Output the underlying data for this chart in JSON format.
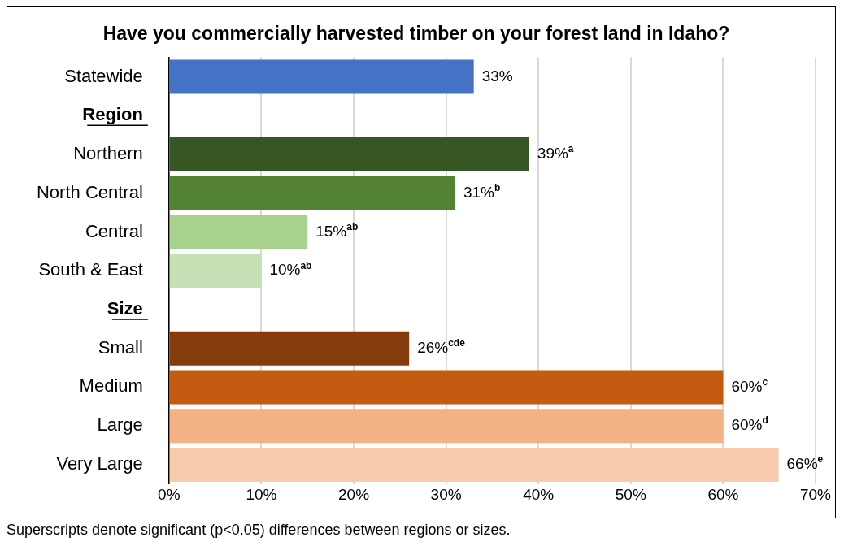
{
  "chart_data": {
    "type": "bar",
    "orientation": "horizontal",
    "title": "Have you commercially harvested timber on your forest land in Idaho?",
    "categories": [
      "Statewide",
      "Region",
      "Northern",
      "North Central",
      "Central",
      "South & East",
      "Size",
      "Small",
      "Medium",
      "Large",
      "Very Large"
    ],
    "values": [
      33,
      null,
      39,
      31,
      15,
      10,
      null,
      26,
      60,
      60,
      66
    ],
    "colors": [
      "#4472c4",
      "#ffffff",
      "#375623",
      "#548235",
      "#a9d18e",
      "#c5e0b4",
      "#ffffff",
      "#843c0c",
      "#c55a11",
      "#f4b183",
      "#f8cbad"
    ],
    "value_labels": [
      "33%",
      null,
      "39%$^{a}$",
      "31%$^{b}$",
      "15%$^{ab}$",
      "10%$^{ab}$",
      null,
      "26%$^{cde}$",
      "60%$^{c}$",
      "60%$^{d}$",
      "66%$^{e}$"
    ],
    "xlim": [
      0,
      70
    ],
    "xticks": [
      {
        "value": 0,
        "label": "0%"
      },
      {
        "value": 10,
        "label": "10%"
      },
      {
        "value": 20,
        "label": "20%"
      },
      {
        "value": 30,
        "label": "30%"
      },
      {
        "value": 40,
        "label": "40%"
      },
      {
        "value": 50,
        "label": "50%"
      },
      {
        "value": 60,
        "label": "60%"
      },
      {
        "value": 70,
        "label": "70%"
      }
    ],
    "grid": "x",
    "legend": false,
    "annotations": [
      "Superscripts denote significant (p<0.05) differences between regions or sizes."
    ]
  }
}
